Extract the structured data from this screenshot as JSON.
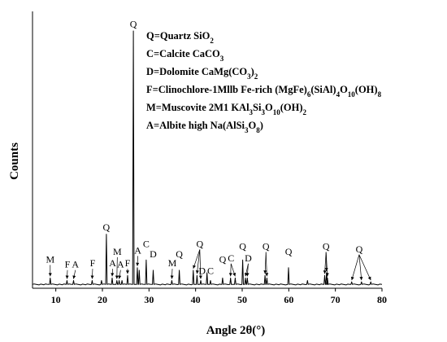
{
  "chart_data": {
    "type": "line",
    "xlabel": "Angle 2θ(°)",
    "ylabel": "Counts",
    "xlim": [
      5,
      80
    ],
    "x_ticks": [
      10,
      20,
      30,
      40,
      50,
      60,
      70,
      80
    ],
    "y_ticks_shown": false,
    "legend_position": "top-right",
    "legend": [
      {
        "segments": [
          {
            "t": "Q=Quartz SiO"
          },
          {
            "t": "2",
            "s": "sub"
          }
        ]
      },
      {
        "segments": [
          {
            "t": "C=Calcite CaCO"
          },
          {
            "t": "3",
            "s": "sub"
          }
        ]
      },
      {
        "segments": [
          {
            "t": "D=Dolomite CaMg(CO"
          },
          {
            "t": "3",
            "s": "sub"
          },
          {
            "t": ")"
          },
          {
            "t": "2",
            "s": "sub"
          }
        ]
      },
      {
        "segments": [
          {
            "t": "F=Clinochlore-1Mllb Fe-rich (MgFe)"
          },
          {
            "t": "6",
            "s": "sub"
          },
          {
            "t": "(SiAl)"
          },
          {
            "t": "4",
            "s": "sub"
          },
          {
            "t": "O"
          },
          {
            "t": "10",
            "s": "sub"
          },
          {
            "t": "(OH)"
          },
          {
            "t": "8",
            "s": "sub"
          }
        ]
      },
      {
        "segments": [
          {
            "t": "M=Muscovite 2M1 KAl"
          },
          {
            "t": "3",
            "s": "sub"
          },
          {
            "t": "Si"
          },
          {
            "t": "3",
            "s": "sub"
          },
          {
            "t": "O"
          },
          {
            "t": "10",
            "s": "sub"
          },
          {
            "t": "(OH)"
          },
          {
            "t": "2",
            "s": "sub"
          }
        ]
      },
      {
        "segments": [
          {
            "t": "A=Albite high Na(AlSi"
          },
          {
            "t": "3",
            "s": "sub"
          },
          {
            "t": "O"
          },
          {
            "t": "8",
            "s": "sub"
          },
          {
            "t": ")"
          }
        ]
      }
    ],
    "series": [
      {
        "baseline": 1.5,
        "peaks": [
          {
            "x": 8.8,
            "y": 4
          },
          {
            "x": 12.4,
            "y": 3
          },
          {
            "x": 13.8,
            "y": 3
          },
          {
            "x": 17.8,
            "y": 3
          },
          {
            "x": 19.8,
            "y": 3
          },
          {
            "x": 20.85,
            "y": 21
          },
          {
            "x": 22.1,
            "y": 4
          },
          {
            "x": 23.1,
            "y": 3
          },
          {
            "x": 23.6,
            "y": 3
          },
          {
            "x": 24.2,
            "y": 3
          },
          {
            "x": 25.4,
            "y": 5
          },
          {
            "x": 26.64,
            "y": 100
          },
          {
            "x": 27.5,
            "y": 8
          },
          {
            "x": 27.9,
            "y": 7
          },
          {
            "x": 29.4,
            "y": 11
          },
          {
            "x": 30.9,
            "y": 7
          },
          {
            "x": 34.9,
            "y": 3
          },
          {
            "x": 36.5,
            "y": 7
          },
          {
            "x": 39.5,
            "y": 7
          },
          {
            "x": 40.3,
            "y": 5
          },
          {
            "x": 41.1,
            "y": 3
          },
          {
            "x": 42.45,
            "y": 6
          },
          {
            "x": 43.2,
            "y": 3
          },
          {
            "x": 45.8,
            "y": 4
          },
          {
            "x": 47.5,
            "y": 4
          },
          {
            "x": 48.5,
            "y": 4
          },
          {
            "x": 50.1,
            "y": 11
          },
          {
            "x": 50.7,
            "y": 4
          },
          {
            "x": 51.1,
            "y": 4
          },
          {
            "x": 54.9,
            "y": 5
          },
          {
            "x": 55.3,
            "y": 4
          },
          {
            "x": 59.95,
            "y": 8
          },
          {
            "x": 64.0,
            "y": 3
          },
          {
            "x": 67.7,
            "y": 5
          },
          {
            "x": 68.1,
            "y": 6
          },
          {
            "x": 68.3,
            "y": 4
          },
          {
            "x": 73.5,
            "y": 2.5
          },
          {
            "x": 75.6,
            "y": 2.5
          },
          {
            "x": 77.6,
            "y": 2.5
          }
        ]
      }
    ],
    "annotations": [
      {
        "text": "Q",
        "x": 26.64,
        "y": 101.5,
        "targets": []
      },
      {
        "text": "Q",
        "x": 20.85,
        "y": 22.5,
        "targets": []
      },
      {
        "text": "M",
        "x": 8.8,
        "y": 10,
        "targets": [
          {
            "x": 8.8,
            "y": 4
          }
        ]
      },
      {
        "text": "F",
        "x": 12.5,
        "y": 8,
        "targets": [
          {
            "x": 12.4,
            "y": 3
          }
        ]
      },
      {
        "text": "A",
        "x": 14.2,
        "y": 8,
        "targets": [
          {
            "x": 13.8,
            "y": 3
          }
        ]
      },
      {
        "text": "F",
        "x": 17.9,
        "y": 8.5,
        "targets": [
          {
            "x": 17.8,
            "y": 3
          }
        ]
      },
      {
        "text": "M",
        "x": 23.2,
        "y": 13,
        "targets": [
          {
            "x": 23.1,
            "y": 3
          }
        ]
      },
      {
        "text": "A",
        "x": 22.2,
        "y": 8.5,
        "targets": [
          {
            "x": 22.1,
            "y": 4
          }
        ]
      },
      {
        "text": "A",
        "x": 23.9,
        "y": 8,
        "targets": [
          {
            "x": 23.6,
            "y": 3
          }
        ]
      },
      {
        "text": "F",
        "x": 25.4,
        "y": 8.5,
        "targets": [
          {
            "x": 25.4,
            "y": 5
          }
        ]
      },
      {
        "text": "A",
        "x": 27.6,
        "y": 13.5,
        "targets": [
          {
            "x": 27.5,
            "y": 8
          }
        ]
      },
      {
        "text": "C",
        "x": 29.4,
        "y": 16,
        "targets": []
      },
      {
        "text": "D",
        "x": 30.9,
        "y": 12,
        "targets": []
      },
      {
        "text": "M",
        "x": 35.0,
        "y": 8.5,
        "targets": [
          {
            "x": 34.9,
            "y": 3
          }
        ]
      },
      {
        "text": "Q",
        "x": 36.5,
        "y": 12,
        "targets": []
      },
      {
        "text": "Q",
        "x": 40.9,
        "y": 16,
        "targets": [
          {
            "x": 39.5,
            "y": 7
          },
          {
            "x": 40.3,
            "y": 5
          },
          {
            "x": 41.1,
            "y": 3
          }
        ]
      },
      {
        "text": "D",
        "x": 41.4,
        "y": 5.5,
        "targets": []
      },
      {
        "text": "C",
        "x": 43.2,
        "y": 5.5,
        "targets": []
      },
      {
        "text": "Q",
        "x": 45.8,
        "y": 10,
        "targets": []
      },
      {
        "text": "C",
        "x": 47.6,
        "y": 10.5,
        "targets": [
          {
            "x": 47.5,
            "y": 4
          },
          {
            "x": 48.5,
            "y": 4
          }
        ]
      },
      {
        "text": "Q",
        "x": 50.1,
        "y": 15,
        "targets": []
      },
      {
        "text": "D",
        "x": 51.3,
        "y": 10.5,
        "targets": [
          {
            "x": 50.7,
            "y": 4
          },
          {
            "x": 51.1,
            "y": 4
          }
        ]
      },
      {
        "text": "Q",
        "x": 55.1,
        "y": 15,
        "targets": [
          {
            "x": 54.9,
            "y": 5
          },
          {
            "x": 55.3,
            "y": 4
          }
        ]
      },
      {
        "text": "Q",
        "x": 59.95,
        "y": 13,
        "targets": []
      },
      {
        "text": "Q",
        "x": 68.0,
        "y": 15,
        "targets": [
          {
            "x": 67.7,
            "y": 5
          },
          {
            "x": 68.1,
            "y": 6
          },
          {
            "x": 68.3,
            "y": 4
          }
        ]
      },
      {
        "text": "Q",
        "x": 75.1,
        "y": 14,
        "targets": [
          {
            "x": 73.5,
            "y": 2.5
          },
          {
            "x": 75.6,
            "y": 2.5
          },
          {
            "x": 77.6,
            "y": 2.5
          }
        ]
      }
    ]
  }
}
